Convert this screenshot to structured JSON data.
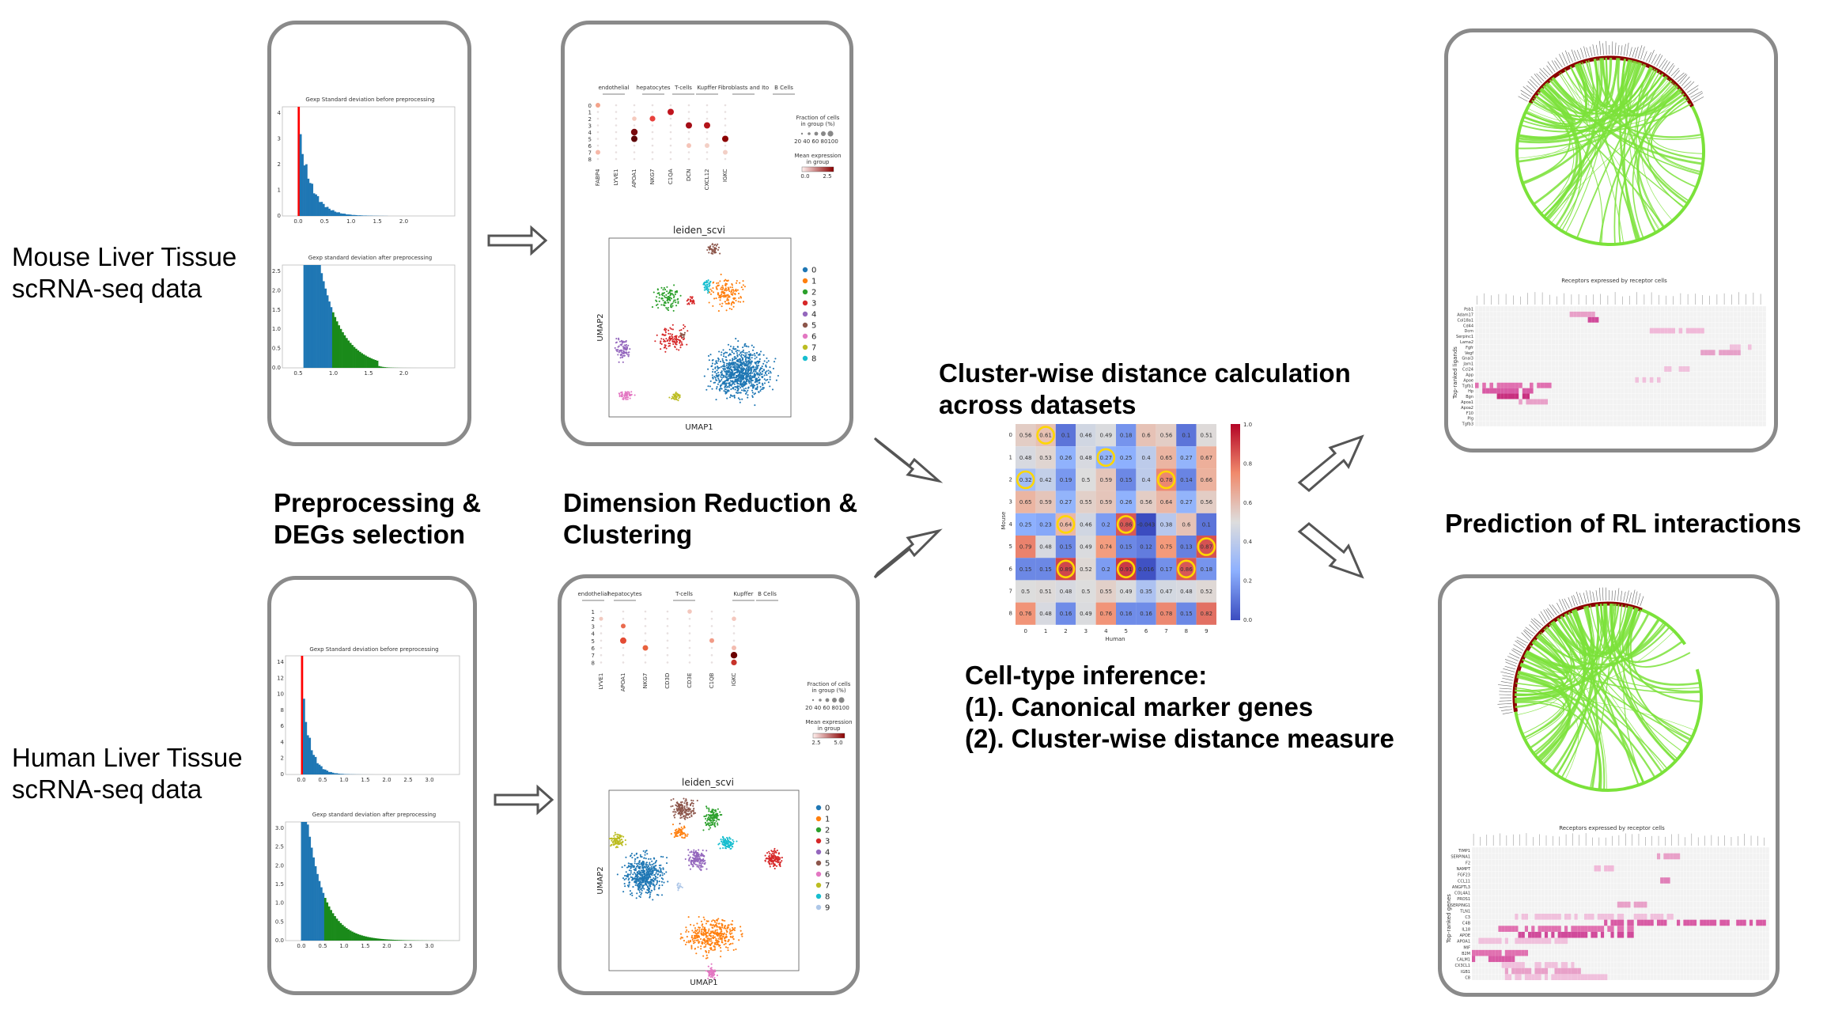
{
  "left_labels": {
    "mouse_line1": "Mouse Liver Tissue",
    "mouse_line2": "scRNA-seq data",
    "human_line1": "Human Liver Tissue",
    "human_line2": "scRNA-seq data"
  },
  "step_labels": {
    "preprocessing_line1": "Preprocessing &",
    "preprocessing_line2": "DEGs selection",
    "dimred_line1": "Dimension Reduction &",
    "dimred_line2": "Clustering",
    "distance_line1": "Cluster-wise distance calculation",
    "distance_line2": "across datasets",
    "inference_line1": "Cell-type inference:",
    "inference_line2": "(1). Canonical marker genes",
    "inference_line3": "(2). Cluster-wise distance measure",
    "rl_prediction": "Prediction of RL interactions"
  },
  "histograms": {
    "mouse_before_title": "Gexp Standard deviation before preprocessing",
    "mouse_after_title": "Gexp standard deviation after preprocessing",
    "human_before_title": "Gexp Standard deviation before preprocessing",
    "human_after_title": "Gexp standard deviation after preprocessing",
    "mouse_before_xticks": [
      "0.0",
      "0.5",
      "1.0",
      "1.5",
      "2.0"
    ],
    "mouse_before_yticks": [
      "4",
      "3",
      "2",
      "1",
      "0"
    ],
    "mouse_after_xticks": [
      "0.5",
      "1.0",
      "1.5",
      "2.0"
    ],
    "mouse_after_yticks": [
      "2.5",
      "2.0",
      "1.5",
      "1.0",
      "0.5",
      "0.0"
    ],
    "human_before_xticks": [
      "0.0",
      "0.5",
      "1.0",
      "1.5",
      "2.0",
      "2.5",
      "3.0"
    ],
    "human_before_yticks": [
      "14",
      "12",
      "10",
      "8",
      "6",
      "4",
      "2",
      "0"
    ],
    "human_after_xticks": [
      "0.0",
      "0.5",
      "1.0",
      "1.5",
      "2.0",
      "2.5",
      "3.0"
    ],
    "human_after_yticks": [
      "3.0",
      "2.5",
      "2.0",
      "1.5",
      "1.0",
      "0.5",
      "0.0"
    ]
  },
  "mouse_dotplot": {
    "groups": [
      "endothelial",
      "hepatocytes",
      "T-cells",
      "Kupffer",
      "Fibroblasts and Ito",
      "B Cells"
    ],
    "genes": [
      "FABP4",
      "LYVE1",
      "APOA1",
      "NKG7",
      "C1QA",
      "DCN",
      "CXCL12",
      "IGKC"
    ],
    "rows": [
      "0",
      "1",
      "2",
      "3",
      "4",
      "5",
      "6",
      "7",
      "8"
    ],
    "legend_fraction_title": "Fraction of cells in group (%)",
    "legend_fraction_ticks": "20 40 60 80100",
    "legend_expr_title": "Mean expression in group",
    "legend_expr_ticks": [
      "0.0",
      "2.5"
    ]
  },
  "human_dotplot": {
    "groups": [
      "endothelial",
      "hepatocytes",
      "T-cells",
      "Kupffer",
      "B Cells"
    ],
    "genes": [
      "LYVE1",
      "APOA1",
      "NKG7",
      "CD3D",
      "CD3E",
      "C1QB",
      "IGKC"
    ],
    "rows": [
      "1",
      "2",
      "3",
      "4",
      "5",
      "6",
      "7",
      "8"
    ],
    "legend_fraction_title": "Fraction of cells in group (%)",
    "legend_fraction_ticks": "20 40 60 80100",
    "legend_expr_title": "Mean expression in group",
    "legend_expr_ticks": [
      "2.5",
      "5.0"
    ]
  },
  "mouse_umap": {
    "title": "leiden_scvi",
    "xlabel": "UMAP1",
    "ylabel": "UMAP2",
    "clusters": [
      "0",
      "1",
      "2",
      "3",
      "4",
      "5",
      "6",
      "7",
      "8"
    ],
    "colors": [
      "#1f77b4",
      "#ff7f0e",
      "#2ca02c",
      "#d62728",
      "#9467bd",
      "#8c564b",
      "#e377c2",
      "#bcbd22",
      "#17becf"
    ]
  },
  "human_umap": {
    "title": "leiden_scvi",
    "xlabel": "UMAP1",
    "ylabel": "UMAP2",
    "clusters": [
      "0",
      "1",
      "2",
      "3",
      "4",
      "5",
      "6",
      "7",
      "8",
      "9"
    ],
    "colors": [
      "#1f77b4",
      "#ff7f0e",
      "#2ca02c",
      "#d62728",
      "#9467bd",
      "#8c564b",
      "#e377c2",
      "#bcbd22",
      "#17becf",
      "#aec7e8"
    ]
  },
  "distance_heatmap": {
    "xlabel": "Human",
    "ylabel": "Mouse",
    "x_ticks": [
      "0",
      "1",
      "2",
      "3",
      "4",
      "5",
      "6",
      "7",
      "8",
      "9"
    ],
    "y_ticks": [
      "0",
      "1",
      "2",
      "3",
      "4",
      "5",
      "6",
      "7",
      "8"
    ],
    "colorbar_ticks": [
      "1.0",
      "0.8",
      "0.6",
      "0.4",
      "0.2",
      "0.0"
    ],
    "values": [
      [
        "0.56",
        "0.61",
        "0.1",
        "0.46",
        "0.49",
        "0.18",
        "0.6",
        "0.56",
        "0.1",
        "0.51"
      ],
      [
        "0.48",
        "0.53",
        "0.26",
        "0.48",
        "0.27",
        "0.25",
        "0.4",
        "0.65",
        "0.27",
        "0.67"
      ],
      [
        "0.32",
        "0.42",
        "0.19",
        "0.5",
        "0.59",
        "0.15",
        "0.4",
        "0.78",
        "0.14",
        "0.66"
      ],
      [
        "0.65",
        "0.59",
        "0.27",
        "0.55",
        "0.59",
        "0.26",
        "0.56",
        "0.64",
        "0.27",
        "0.56"
      ],
      [
        "0.25",
        "0.23",
        "0.64",
        "0.46",
        "0.2",
        "0.86",
        "-0.043",
        "0.38",
        "0.6",
        "0.1"
      ],
      [
        "0.79",
        "0.48",
        "0.15",
        "0.49",
        "0.74",
        "0.15",
        "0.12",
        "0.75",
        "0.13",
        "0.87"
      ],
      [
        "0.15",
        "0.15",
        "0.89",
        "0.52",
        "0.2",
        "0.91",
        "0.016",
        "0.17",
        "0.86",
        "0.18"
      ],
      [
        "0.5",
        "0.51",
        "0.48",
        "0.5",
        "0.55",
        "0.49",
        "0.35",
        "0.47",
        "0.48",
        "0.52"
      ],
      [
        "0.76",
        "0.48",
        "0.16",
        "0.49",
        "0.76",
        "0.16",
        "0.16",
        "0.78",
        "0.15",
        "0.82"
      ]
    ],
    "highlighted": [
      [
        0,
        1
      ],
      [
        1,
        4
      ],
      [
        2,
        0
      ],
      [
        2,
        7
      ],
      [
        4,
        2
      ],
      [
        4,
        5
      ],
      [
        5,
        9
      ],
      [
        6,
        2
      ],
      [
        6,
        5
      ],
      [
        6,
        8
      ]
    ]
  },
  "rl_heatmaps": {
    "mouse_title": "Receptors expressed by receptor cells",
    "mouse_ylabel": "Top-ranked ligands",
    "mouse_ligands": [
      "Psb1",
      "Adam17",
      "Col18a1",
      "Cd44",
      "Dcm",
      "Serpinc1",
      "Lama2",
      "Fgfr",
      "Vegf",
      "Gnai3",
      "Jam1",
      "Ccl24",
      "App",
      "Apoe",
      "Tgfb1",
      "Hp",
      "Bgn",
      "Apoa1",
      "Apoa2",
      "F10",
      "Plg",
      "Tgfb3"
    ],
    "human_title": "Receptors expressed by receptor cells",
    "human_ylabel": "Top-ranked genes",
    "human_ligands": [
      "TIMP1",
      "SERPINA1",
      "F2",
      "NAMPT",
      "FGF23",
      "CCL11",
      "ANGPTL3",
      "COL4A1",
      "PROS1",
      "SERPING1",
      "TLN1",
      "C3",
      "C4B",
      "IL18",
      "APOE",
      "APOA1",
      "MIF",
      "B2M",
      "CALM1",
      "CX3CL1",
      "IGB1",
      "C8"
    ]
  },
  "colors": {
    "panel_border": "#8a8a8a",
    "arrow_fill": "#ffffff",
    "arrow_stroke": "#555555",
    "hist_blue": "#1f77b4",
    "hist_red": "#ff0000",
    "hist_green": "#1a8a1a",
    "chord_green": "#7be23a",
    "chord_dark": "#8b0000",
    "heat_high": "#b40426",
    "heat_low": "#3b4cc0",
    "highlight_ring": "#ffd700"
  }
}
